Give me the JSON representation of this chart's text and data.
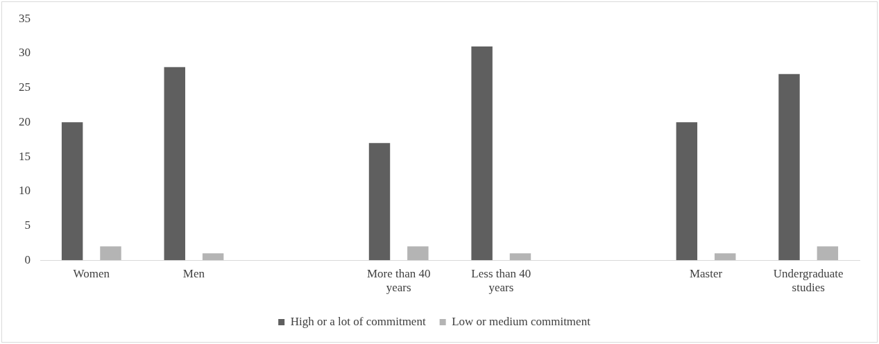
{
  "chart_data": {
    "type": "bar",
    "categories": [
      "Women",
      "Men",
      null,
      "More than 40 years",
      "Less than 40 years",
      null,
      "Master",
      "Undergraduate studies"
    ],
    "series": [
      {
        "name": "High or a lot of commitment",
        "color": "#5f5f5f",
        "values": [
          20,
          28,
          null,
          17,
          31,
          null,
          20,
          27
        ]
      },
      {
        "name": "Low or medium commitment",
        "color": "#b4b4b4",
        "values": [
          2,
          1,
          null,
          2,
          1,
          null,
          1,
          2
        ]
      }
    ],
    "ylim": [
      0,
      35
    ],
    "yticks": [
      0,
      5,
      10,
      15,
      20,
      25,
      30,
      35
    ],
    "grid": false,
    "legend": "bottom"
  }
}
